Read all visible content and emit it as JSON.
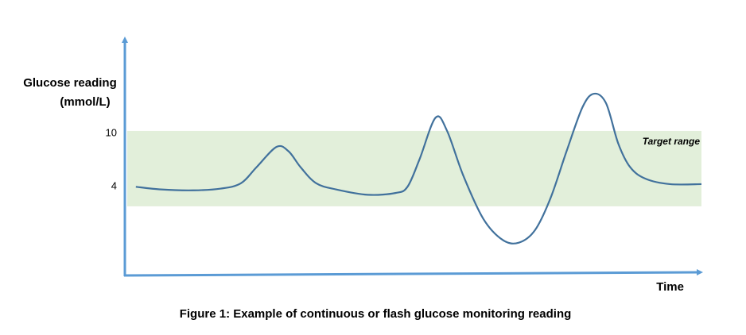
{
  "chart_data": {
    "type": "line",
    "title": "Figure 1: Example of continuous or flash glucose monitoring reading",
    "ylabel": [
      "Glucose reading",
      "(mmol/L)"
    ],
    "xlabel": "Time",
    "annotation": "Target range",
    "target_range": [
      1.8,
      10.3
    ],
    "band_color": "#e2efda",
    "axis_color": "#5b9bd5",
    "xlim": [
      0,
      100
    ],
    "ylim": [
      -6,
      20
    ],
    "yticks": [
      10,
      4
    ],
    "grid": false,
    "series": [
      {
        "color": "#41719c",
        "x": [
          1.5,
          5.9,
          11.5,
          16.3,
          19.8,
          22.5,
          26.0,
          28.1,
          30.2,
          32.9,
          36.4,
          41.9,
          46.7,
          48.8,
          50.9,
          53.7,
          55.7,
          58.5,
          62.0,
          65.4,
          68.2,
          71.0,
          73.7,
          76.5,
          79.3,
          81.3,
          83.4,
          85.5,
          87.6,
          90.3,
          94.5,
          100
        ],
        "values": [
          4.0,
          3.7,
          3.6,
          3.8,
          4.4,
          6.2,
          8.5,
          8.0,
          6.2,
          4.4,
          3.7,
          3.1,
          3.3,
          4.0,
          7.1,
          11.8,
          10.3,
          5.3,
          0.4,
          -2.0,
          -2.3,
          -0.9,
          2.7,
          8.0,
          13.0,
          14.5,
          13.4,
          8.9,
          6.2,
          4.9,
          4.3,
          4.3
        ]
      }
    ]
  }
}
